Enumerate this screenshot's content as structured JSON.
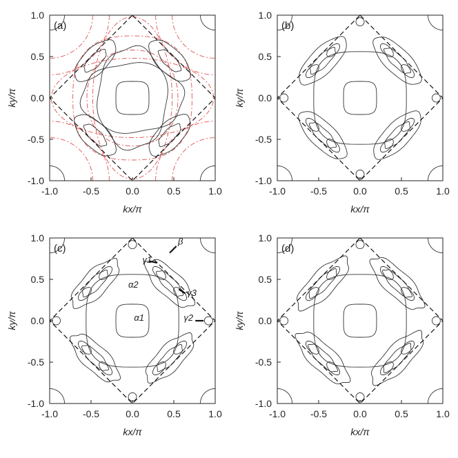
{
  "chart_data": [
    {
      "type": "contour",
      "panel_label": "(a)",
      "xlabel": "kx/π",
      "ylabel": "ky/π",
      "xlim": [
        -1.0,
        1.0
      ],
      "ylim": [
        -1.0,
        1.0
      ],
      "xticks": [
        "-1.0",
        "-0.5",
        "0.0",
        "0.5",
        "1.0"
      ],
      "yticks": [
        "1.0",
        "0.5",
        "0.0",
        "-0.5",
        "-1.0"
      ],
      "series": [
        {
          "style": "solid",
          "color": "#333333",
          "contours": [
            "central rounded square |kx|,|ky|≈0.2",
            "corner pockets at (±1,±1)",
            "eye-shaped pockets along diagonals centered near (±0.45,±0.45)",
            "outer lens contour |ky|≈0.4 at kx=0"
          ]
        },
        {
          "style": "dash-dot",
          "color": "#e05050",
          "contours": [
            "nested ovals centered at origin",
            "curves near (±1,±1)"
          ]
        },
        {
          "style": "dashed",
          "color": "#111111",
          "contours": [
            "diamond |kx|+|ky|=1 (magnetic Brillouin zone)"
          ]
        }
      ]
    },
    {
      "type": "contour",
      "panel_label": "(b)",
      "xlabel": "kx/π",
      "ylabel": "ky/π",
      "xlim": [
        -1.0,
        1.0
      ],
      "ylim": [
        -1.0,
        1.0
      ],
      "xticks": [
        "-1.0",
        "-0.5",
        "0.0",
        "0.5",
        "1.0"
      ],
      "yticks": [
        "1.0",
        "0.5",
        "0.0",
        "-0.5",
        "-1.0"
      ],
      "series": [
        {
          "style": "solid",
          "color": "#333333",
          "contours": [
            "central rounded square",
            "outer rounded square |kx|,|ky|≈0.55",
            "corner pockets",
            "lens-shaped pockets along diagonals with small inner islands"
          ]
        },
        {
          "style": "dashed",
          "color": "#111111",
          "contours": [
            "diamond |kx|+|ky|=1"
          ]
        }
      ]
    },
    {
      "type": "contour",
      "panel_label": "(c)",
      "xlabel": "kx/π",
      "ylabel": "ky/π",
      "xlim": [
        -1.0,
        1.0
      ],
      "ylim": [
        -1.0,
        1.0
      ],
      "xticks": [
        "-1.0",
        "-0.5",
        "0.0",
        "0.5",
        "1.0"
      ],
      "yticks": [
        "1.0",
        "0.5",
        "0.0",
        "-0.5",
        "-1.0"
      ],
      "annotations": [
        "β",
        "γ1",
        "α2",
        "γ3",
        "α1",
        "γ2"
      ],
      "series": [
        {
          "style": "solid",
          "color": "#333333",
          "contours": [
            "α1 central rounded square",
            "α2 outer rounded square",
            "γ pockets along diagonals",
            "β small pocket near (0,±1)"
          ]
        },
        {
          "style": "dashed",
          "color": "#111111",
          "contours": [
            "diamond |kx|+|ky|=1"
          ]
        }
      ]
    },
    {
      "type": "contour",
      "panel_label": "(d)",
      "xlabel": "kx/π",
      "ylabel": "ky/π",
      "xlim": [
        -1.0,
        1.0
      ],
      "ylim": [
        -1.0,
        1.0
      ],
      "xticks": [
        "-1.0",
        "-0.5",
        "0.0",
        "0.5",
        "1.0"
      ],
      "yticks": [
        "1.0",
        "0.5",
        "0.0",
        "-0.5",
        "-1.0"
      ],
      "series": [
        {
          "style": "solid",
          "color": "#333333",
          "contours": [
            "central rounded square",
            "outer rounded square",
            "elongated pockets along diagonals",
            "small triangles at (0,±1) and (±1,0)"
          ]
        },
        {
          "style": "dashed",
          "color": "#111111",
          "contours": [
            "diamond |kx|+|ky|=1"
          ]
        }
      ]
    }
  ]
}
